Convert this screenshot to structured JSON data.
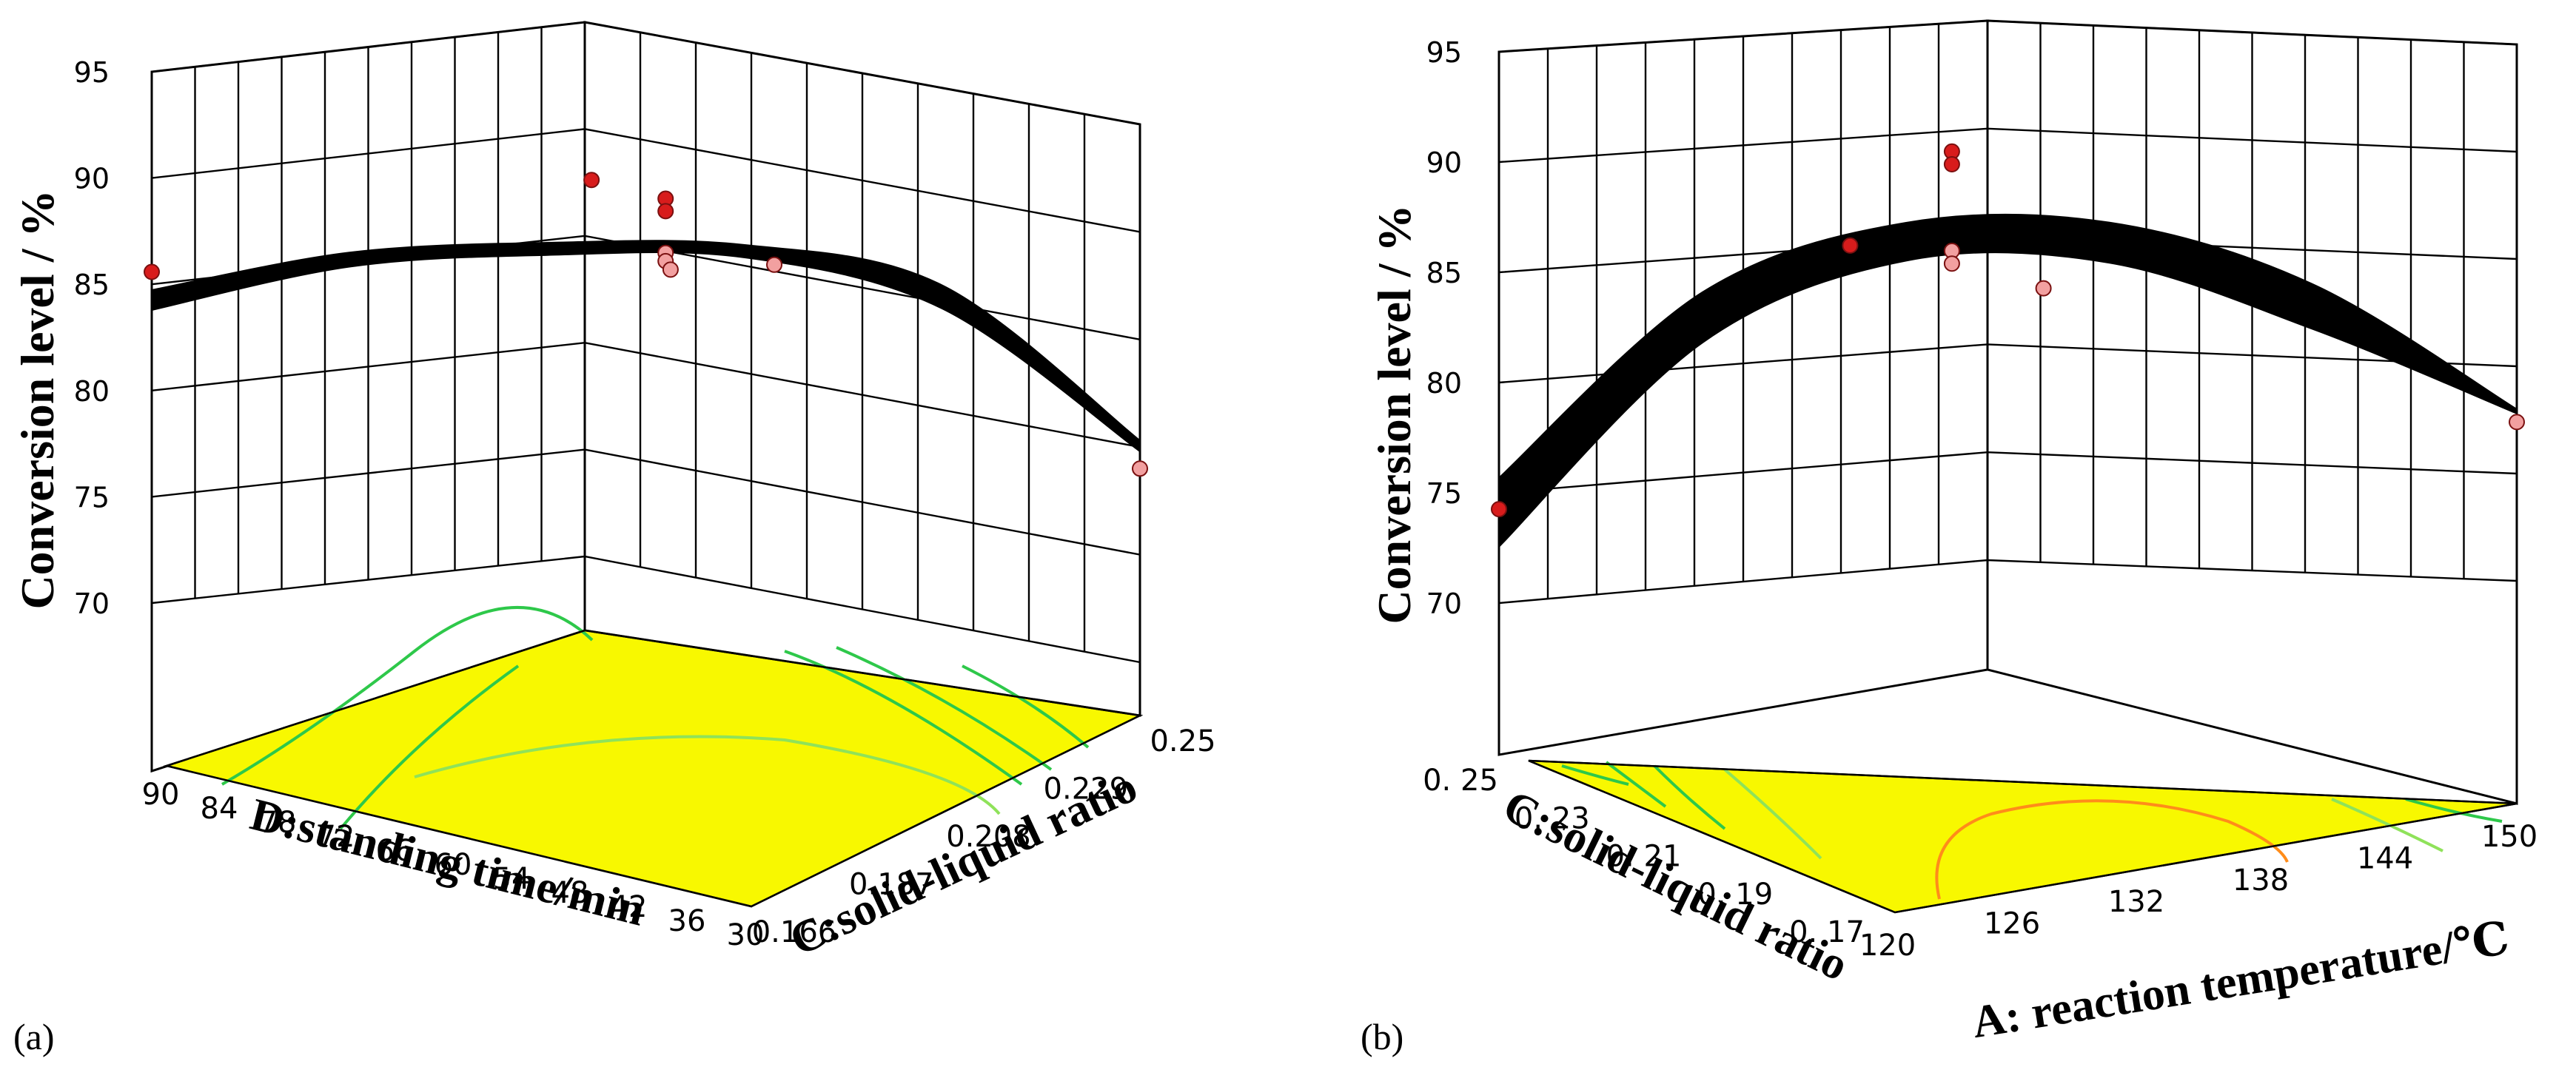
{
  "colors": {
    "floor": "#f8f800",
    "contour_green": "#2ec84a",
    "contour_light": "#8fe25a",
    "contour_orange": "#ff8c1a",
    "point_red": "#d81c1c",
    "point_pink": "#f2a0a0",
    "surface": "#000000"
  },
  "chart_data": [
    {
      "type": "surface",
      "panel_label": "(a)",
      "zlabel": "Conversion level / %",
      "zticks": [
        "95",
        "90",
        "85",
        "80",
        "75",
        "70"
      ],
      "zlim": [
        70,
        95
      ],
      "xlabel": "D:standing time/min",
      "xticks": [
        "90",
        "84",
        "78",
        "72",
        "66",
        "60",
        "54",
        "48",
        "42",
        "36",
        "30"
      ],
      "ylabel": "C:solid-liquid ratio",
      "yticks": [
        "0.166",
        "0.187",
        "0.208",
        "0.229",
        "0.25"
      ],
      "surface_front_edge": {
        "x": [
          90,
          78,
          66,
          54,
          42,
          30
        ],
        "top": [
          85.6,
          87.8,
          88.6,
          88.8,
          87.2,
          80.3
        ],
        "bottom": [
          84.6,
          87.1,
          88.0,
          88.2,
          86.1,
          79.8
        ]
      },
      "points": [
        {
          "label": "red",
          "value": 86.5
        },
        {
          "label": "red",
          "value": 91.7
        },
        {
          "label": "red",
          "value": 90.9
        },
        {
          "label": "red",
          "value": 90.3
        },
        {
          "label": "pink",
          "value": 88.3
        },
        {
          "label": "pink",
          "value": 87.9
        },
        {
          "label": "pink",
          "value": 87.5
        },
        {
          "label": "pink",
          "value": 87.9
        },
        {
          "label": "pink",
          "value": 79.0
        }
      ]
    },
    {
      "type": "surface",
      "panel_label": "(b)",
      "zlabel": "Conversion level / %",
      "zticks": [
        "95",
        "90",
        "85",
        "80",
        "75",
        "70"
      ],
      "zlim": [
        70,
        95
      ],
      "xlabel": "A: reaction temperature/℃",
      "xticks": [
        "120",
        "126",
        "132",
        "138",
        "144",
        "150"
      ],
      "ylabel": "C:solid-liquid ratio",
      "yticks": [
        "0. 25",
        "0. 23",
        "0. 21",
        "0. 19",
        "0. 17"
      ],
      "surface_front_edge": {
        "x": [
          120,
          126,
          132,
          138,
          144,
          150
        ],
        "top": [
          76.0,
          84.6,
          87.6,
          87.3,
          84.1,
          78.0
        ],
        "bottom": [
          72.7,
          82.2,
          85.8,
          85.4,
          82.0,
          77.8
        ]
      },
      "points": [
        {
          "label": "red",
          "value": 74.5
        },
        {
          "label": "red",
          "value": 86.6
        },
        {
          "label": "red",
          "value": 90.9
        },
        {
          "label": "red",
          "value": 90.3
        },
        {
          "label": "pink",
          "value": 86.2
        },
        {
          "label": "pink",
          "value": 85.6
        },
        {
          "label": "pink",
          "value": 84.3
        },
        {
          "label": "pink",
          "value": 77.4
        }
      ]
    }
  ]
}
